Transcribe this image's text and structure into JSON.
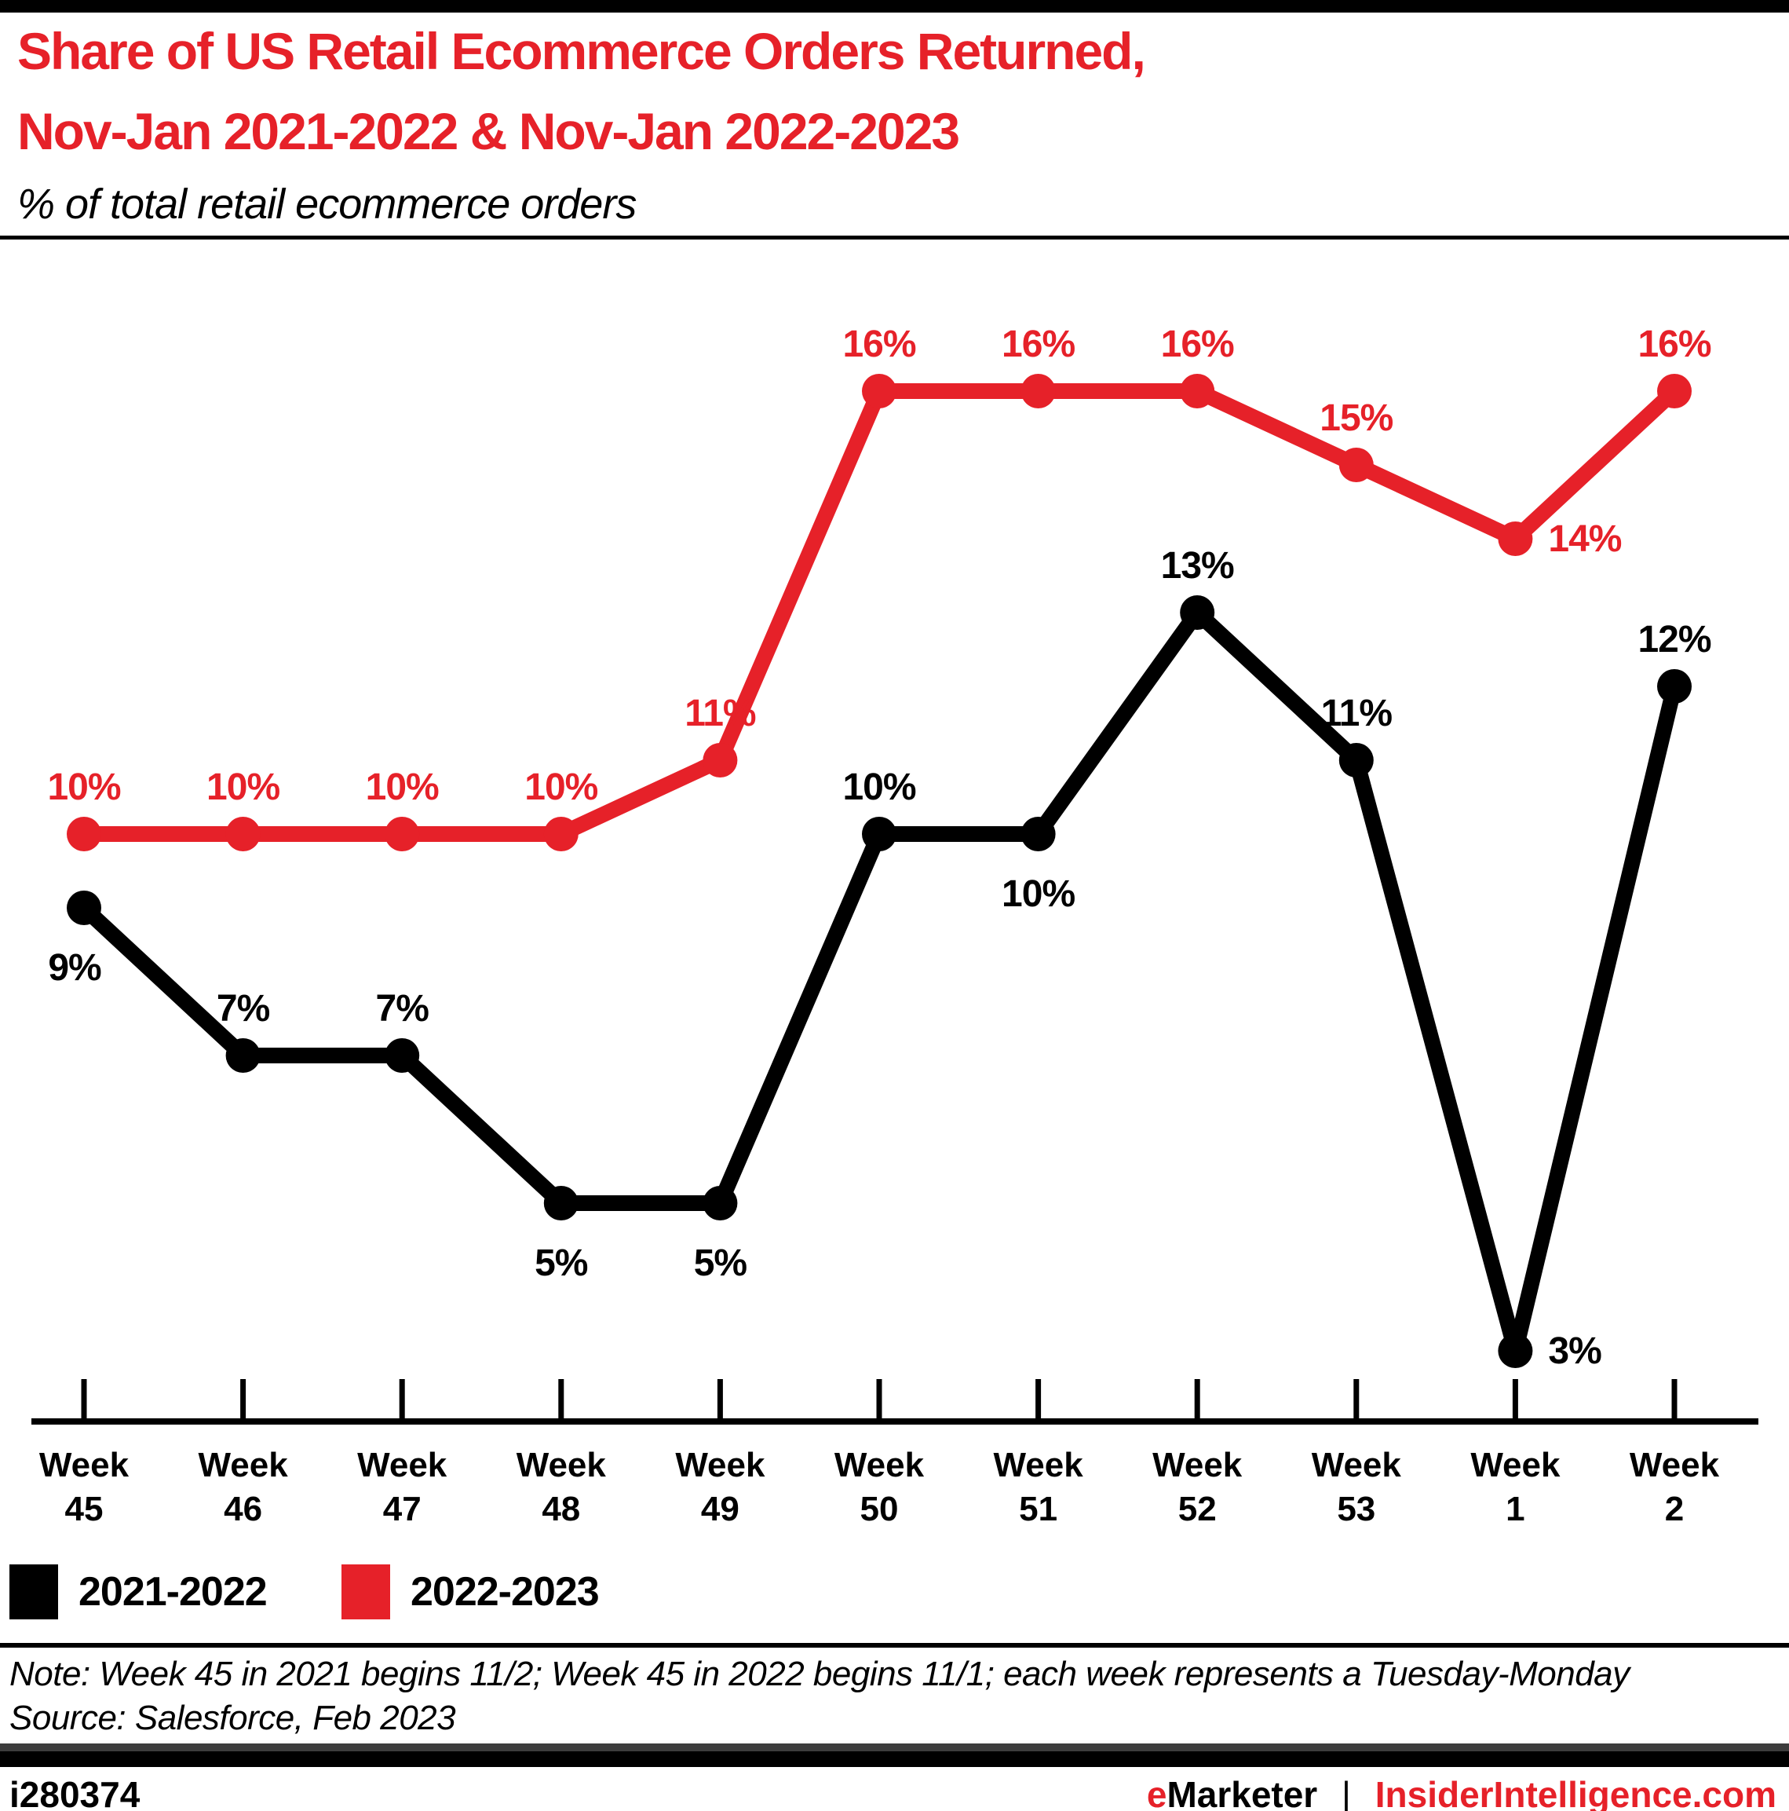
{
  "header": {
    "title_line1": "Share of US Retail Ecommerce Orders Returned,",
    "title_line2": "Nov-Jan 2021-2022 & Nov-Jan 2022-2023",
    "subtitle": "% of total retail ecommerce orders"
  },
  "chart_data": {
    "type": "line",
    "title": "Share of US Retail Ecommerce Orders Returned, Nov-Jan 2021-2022 & Nov-Jan 2022-2023",
    "ylabel": "% of total retail ecommerce orders",
    "value_suffix": "%",
    "x_label_word": "Week",
    "weeks": [
      "45",
      "46",
      "47",
      "48",
      "49",
      "50",
      "51",
      "52",
      "53",
      "1",
      "2"
    ],
    "ylim": [
      0,
      18
    ],
    "grid": false,
    "legend_position": "bottom-left",
    "series": [
      {
        "name": "2021-2022",
        "color": "#000000",
        "values": [
          9,
          7,
          7,
          5,
          5,
          10,
          10,
          13,
          11,
          3,
          12
        ],
        "label_positions": [
          "below-left",
          "above",
          "above",
          "below",
          "below",
          "above",
          "below",
          "above",
          "above",
          "right",
          "above"
        ]
      },
      {
        "name": "2022-2023",
        "color": "#e62129",
        "values": [
          10,
          10,
          10,
          10,
          11,
          16,
          16,
          16,
          15,
          14,
          16
        ],
        "label_positions": [
          "above",
          "above",
          "above",
          "above",
          "above",
          "above",
          "above",
          "above",
          "above",
          "right",
          "above"
        ]
      }
    ]
  },
  "legend": {
    "items": [
      {
        "label": "2021-2022",
        "color": "#000000"
      },
      {
        "label": "2022-2023",
        "color": "#e62129"
      }
    ]
  },
  "notes": {
    "note": "Note: Week 45 in 2021 begins 11/2; Week 45 in 2022 begins 11/1; each week represents a Tuesday-Monday",
    "source": "Source: Salesforce, Feb 2023"
  },
  "footer": {
    "chart_id": "i280374",
    "brand_first_letter": "e",
    "brand_rest": "Marketer",
    "separator": "|",
    "website": "InsiderIntelligence.com"
  }
}
